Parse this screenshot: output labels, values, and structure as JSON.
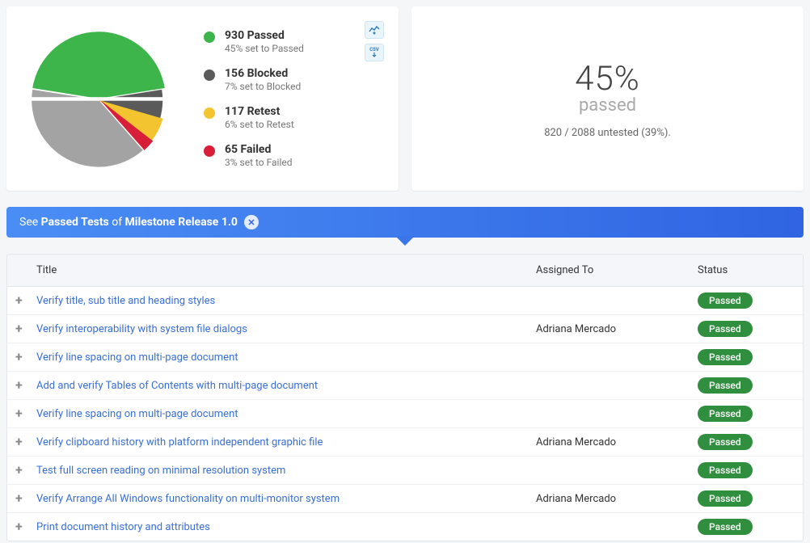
{
  "colors": {
    "passed": "#3eb54a",
    "blocked": "#5a5a5a",
    "retest": "#f4c430",
    "failed": "#d81f3a",
    "untested": "#a3a3a3",
    "link": "#3a6fd8",
    "status_badge_bg": "#2f8f3e",
    "banner_start": "#4a8ef5",
    "banner_end": "#3064e2"
  },
  "chart": {
    "type": "pie",
    "total": 2088,
    "slices": [
      {
        "key": "passed",
        "value": 930,
        "pct": 45,
        "color": "#3eb54a"
      },
      {
        "key": "blocked",
        "value": 156,
        "pct": 7,
        "color": "#5a5a5a"
      },
      {
        "key": "retest",
        "value": 117,
        "pct": 6,
        "color": "#f4c430"
      },
      {
        "key": "failed",
        "value": 65,
        "pct": 3,
        "color": "#d81f3a"
      },
      {
        "key": "untested",
        "value": 820,
        "pct": 39,
        "color": "#a3a3a3"
      }
    ],
    "center_gap_angle_deg": 6
  },
  "legend": {
    "passed": {
      "title": "930 Passed",
      "sub": "45% set to Passed"
    },
    "blocked": {
      "title": "156 Blocked",
      "sub": "7% set to Blocked"
    },
    "retest": {
      "title": "117 Retest",
      "sub": "6% set to Retest"
    },
    "failed": {
      "title": "65 Failed",
      "sub": "3% set to Failed"
    }
  },
  "stats": {
    "pct": "45%",
    "label": "passed",
    "sub": "820 / 2088 untested (39%)."
  },
  "banner": {
    "prefix": "See ",
    "bold1": "Passed Tests",
    "middle": " of ",
    "bold2": "Milestone Release 1.0"
  },
  "export": {
    "chart_label": "chart",
    "csv_label": "CSV"
  },
  "table": {
    "columns": {
      "title": "Title",
      "assigned": "Assigned To",
      "status": "Status"
    },
    "rows": [
      {
        "title": "Verify title, sub title and heading styles",
        "assigned": "",
        "status": "Passed"
      },
      {
        "title": "Verify interoperability with system file dialogs",
        "assigned": "Adriana Mercado",
        "status": "Passed"
      },
      {
        "title": "Verify line spacing on multi-page document",
        "assigned": "",
        "status": "Passed"
      },
      {
        "title": "Add and verify Tables of Contents with multi-page document",
        "assigned": "",
        "status": "Passed"
      },
      {
        "title": "Verify line spacing on multi-page document",
        "assigned": "",
        "status": "Passed"
      },
      {
        "title": "Verify clipboard history with platform independent graphic file",
        "assigned": "Adriana Mercado",
        "status": "Passed"
      },
      {
        "title": "Test full screen reading on minimal resolution system",
        "assigned": "",
        "status": "Passed"
      },
      {
        "title": "Verify Arrange All Windows functionality on multi-monitor system",
        "assigned": "Adriana Mercado",
        "status": "Passed"
      },
      {
        "title": "Print document history and attributes",
        "assigned": "",
        "status": "Passed"
      }
    ]
  }
}
